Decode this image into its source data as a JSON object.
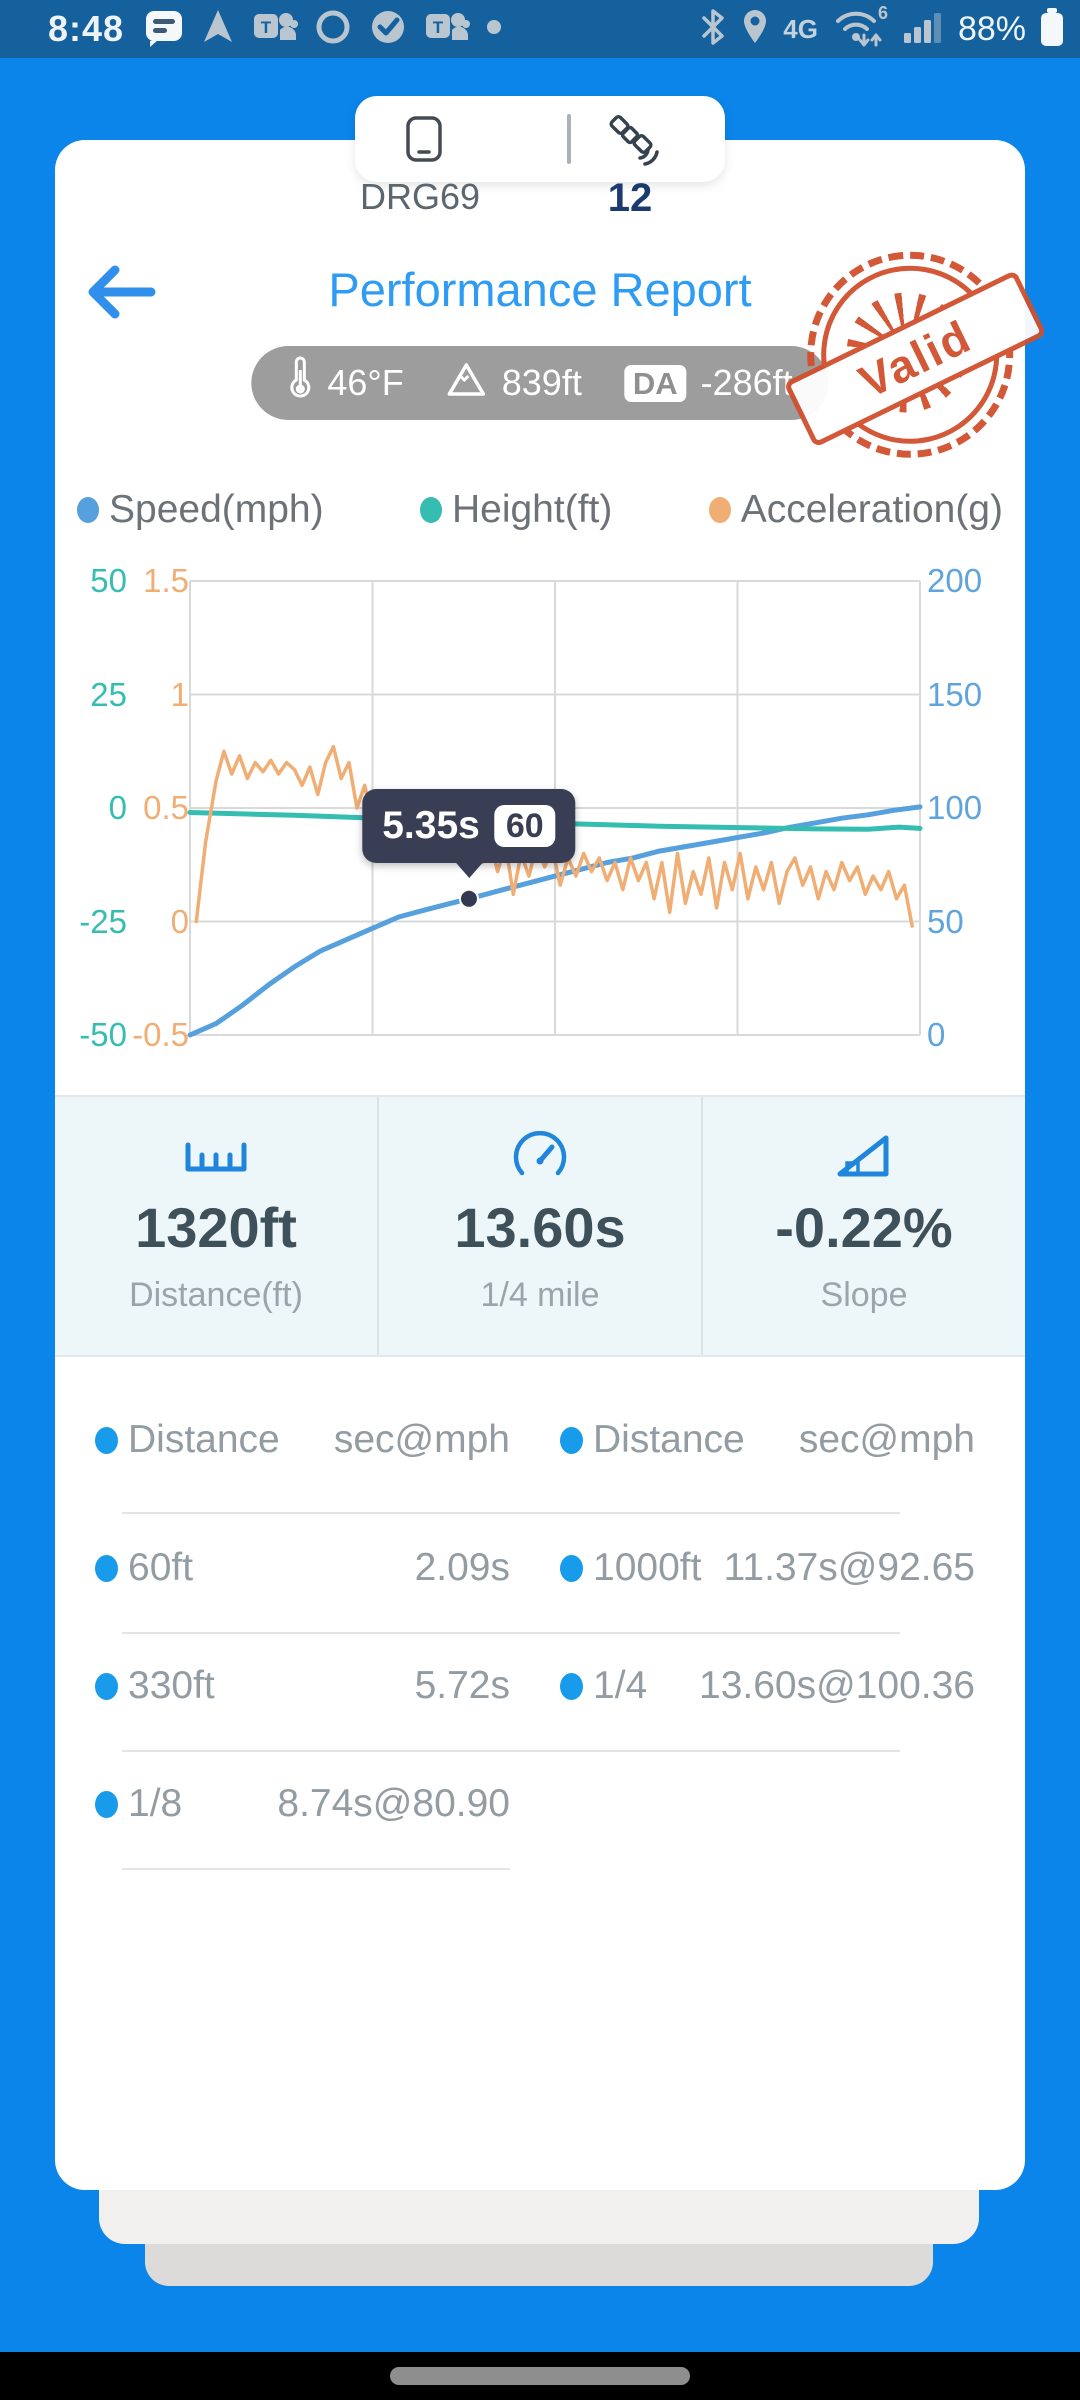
{
  "status_bar": {
    "time": "8:48",
    "battery": "88%",
    "mobile_data_label": "4G",
    "wifi_standard": "6",
    "left_icons": [
      "messages-icon",
      "navigation-arrow-icon",
      "teams-icon",
      "circle-icon",
      "check-circle-icon",
      "teams-icon",
      "overflow-dot-icon"
    ],
    "right_icons": [
      "bluetooth-icon",
      "location-pin-icon",
      "mobile-data-icon",
      "wifi-icon",
      "signal-bars-icon",
      "battery-icon"
    ]
  },
  "device_bar": {
    "device_name": "DRG69",
    "satellite_count": "12",
    "icons": [
      "device-icon",
      "satellite-icon"
    ]
  },
  "header": {
    "title": "Performance Report",
    "stamp_label": "Valid",
    "conditions": {
      "temperature": "46°F",
      "altitude": "839ft",
      "da_label": "DA",
      "density_altitude": "-286ft"
    }
  },
  "legend": [
    {
      "label": "Speed(mph)",
      "color": "#55A0DD"
    },
    {
      "label": "Height(ft)",
      "color": "#35BDB2"
    },
    {
      "label": "Acceleration(g)",
      "color": "#F0AE74"
    }
  ],
  "chart_data": {
    "type": "line",
    "x_range": [
      0,
      14
    ],
    "x_unit": "seconds",
    "grid": true,
    "axes": {
      "left_height": {
        "color": "#35BDB2",
        "range": [
          -50,
          50
        ],
        "ticks": [
          "50",
          "25",
          "0",
          "-25",
          "-50"
        ]
      },
      "left_acceleration": {
        "color": "#F0AE74",
        "range": [
          -0.5,
          1.5
        ],
        "ticks": [
          "1.5",
          "1",
          "0.5",
          "0",
          "-0.5"
        ]
      },
      "right_speed": {
        "color": "#61A4DB",
        "range": [
          0,
          200
        ],
        "ticks": [
          "200",
          "150",
          "100",
          "50",
          "0"
        ]
      }
    },
    "series": [
      {
        "name": "Speed(mph)",
        "axis": "right_speed",
        "color": "#55A0DD",
        "width": 5,
        "points": [
          [
            0,
            0
          ],
          [
            0.5,
            5
          ],
          [
            1,
            13
          ],
          [
            1.5,
            22
          ],
          [
            2,
            30
          ],
          [
            2.5,
            37
          ],
          [
            3,
            42
          ],
          [
            3.5,
            47
          ],
          [
            4,
            52
          ],
          [
            4.5,
            55
          ],
          [
            5,
            58
          ],
          [
            5.35,
            60
          ],
          [
            6,
            64
          ],
          [
            6.5,
            67
          ],
          [
            7,
            70
          ],
          [
            7.5,
            73
          ],
          [
            8,
            76
          ],
          [
            8.5,
            78
          ],
          [
            9,
            81
          ],
          [
            9.5,
            83
          ],
          [
            10,
            85
          ],
          [
            10.5,
            87
          ],
          [
            11,
            89
          ],
          [
            11.5,
            91.5
          ],
          [
            12,
            93.5
          ],
          [
            12.5,
            95.5
          ],
          [
            13,
            97
          ],
          [
            13.5,
            99
          ],
          [
            14,
            100.5
          ]
        ]
      },
      {
        "name": "Height(ft)",
        "axis": "left_height",
        "color": "#35BDB2",
        "width": 5,
        "points": [
          [
            0,
            -1
          ],
          [
            1,
            -1.3
          ],
          [
            2,
            -1.6
          ],
          [
            3,
            -2
          ],
          [
            4,
            -2.4
          ],
          [
            5,
            -2.8
          ],
          [
            6,
            -3.1
          ],
          [
            7,
            -3.4
          ],
          [
            8,
            -3.7
          ],
          [
            9,
            -4
          ],
          [
            10,
            -4.2
          ],
          [
            11,
            -4.4
          ],
          [
            12,
            -4.6
          ],
          [
            13,
            -4.7
          ],
          [
            13.6,
            -4.2
          ],
          [
            14,
            -4.5
          ]
        ]
      },
      {
        "name": "Acceleration(g)",
        "axis": "left_acceleration",
        "color": "#F0AE74",
        "width": 3.5,
        "points": [
          [
            0.12,
            0
          ],
          [
            0.3,
            0.35
          ],
          [
            0.5,
            0.62
          ],
          [
            0.65,
            0.75
          ],
          [
            0.8,
            0.65
          ],
          [
            0.95,
            0.73
          ],
          [
            1.1,
            0.63
          ],
          [
            1.25,
            0.7
          ],
          [
            1.4,
            0.66
          ],
          [
            1.55,
            0.71
          ],
          [
            1.7,
            0.65
          ],
          [
            1.85,
            0.7
          ],
          [
            2,
            0.67
          ],
          [
            2.15,
            0.6
          ],
          [
            2.3,
            0.68
          ],
          [
            2.45,
            0.56
          ],
          [
            2.6,
            0.7
          ],
          [
            2.75,
            0.77
          ],
          [
            2.9,
            0.63
          ],
          [
            3.05,
            0.7
          ],
          [
            3.2,
            0.5
          ],
          [
            3.35,
            0.6
          ],
          [
            3.5,
            0.44
          ],
          [
            3.65,
            0.54
          ],
          [
            3.8,
            0.38
          ],
          [
            3.95,
            0.3
          ],
          [
            4.1,
            0.42
          ],
          [
            4.25,
            0.33
          ],
          [
            4.4,
            0.44
          ],
          [
            4.55,
            0.3
          ],
          [
            4.7,
            0.4
          ],
          [
            4.85,
            0.46
          ],
          [
            5,
            0.36
          ],
          [
            5.15,
            0.44
          ],
          [
            5.3,
            0.3
          ],
          [
            5.45,
            0.38
          ],
          [
            5.6,
            0.26
          ],
          [
            5.75,
            0.36
          ],
          [
            5.9,
            0.22
          ],
          [
            6.05,
            0.34
          ],
          [
            6.2,
            0.12
          ],
          [
            6.35,
            0.3
          ],
          [
            6.5,
            0.2
          ],
          [
            6.65,
            0.34
          ],
          [
            6.8,
            0.24
          ],
          [
            6.95,
            0.32
          ],
          [
            7.1,
            0.16
          ],
          [
            7.25,
            0.28
          ],
          [
            7.4,
            0.2
          ],
          [
            7.55,
            0.3
          ],
          [
            7.7,
            0.22
          ],
          [
            7.85,
            0.28
          ],
          [
            8,
            0.18
          ],
          [
            8.15,
            0.26
          ],
          [
            8.3,
            0.14
          ],
          [
            8.45,
            0.28
          ],
          [
            8.6,
            0.18
          ],
          [
            8.75,
            0.26
          ],
          [
            8.9,
            0.1
          ],
          [
            9.05,
            0.26
          ],
          [
            9.2,
            0.04
          ],
          [
            9.35,
            0.3
          ],
          [
            9.5,
            0.08
          ],
          [
            9.65,
            0.22
          ],
          [
            9.8,
            0.12
          ],
          [
            9.95,
            0.28
          ],
          [
            10.1,
            0.06
          ],
          [
            10.25,
            0.26
          ],
          [
            10.4,
            0.14
          ],
          [
            10.55,
            0.3
          ],
          [
            10.7,
            0.1
          ],
          [
            10.85,
            0.24
          ],
          [
            11,
            0.14
          ],
          [
            11.15,
            0.26
          ],
          [
            11.3,
            0.08
          ],
          [
            11.45,
            0.22
          ],
          [
            11.6,
            0.28
          ],
          [
            11.75,
            0.16
          ],
          [
            11.9,
            0.24
          ],
          [
            12.05,
            0.1
          ],
          [
            12.2,
            0.22
          ],
          [
            12.35,
            0.14
          ],
          [
            12.5,
            0.26
          ],
          [
            12.65,
            0.18
          ],
          [
            12.8,
            0.24
          ],
          [
            12.95,
            0.12
          ],
          [
            13.1,
            0.2
          ],
          [
            13.25,
            0.14
          ],
          [
            13.4,
            0.22
          ],
          [
            13.55,
            0.1
          ],
          [
            13.7,
            0.16
          ],
          [
            13.85,
            -0.02
          ]
        ]
      }
    ],
    "tooltip": {
      "series": "Speed(mph)",
      "t": 5.35,
      "value": 60,
      "time_label": "5.35s",
      "value_label": "60"
    },
    "legend_position": "top"
  },
  "stats": [
    {
      "icon": "ruler-icon",
      "value": "1320ft",
      "label": "Distance(ft)"
    },
    {
      "icon": "speedometer-icon",
      "value": "13.60s",
      "label": "1/4 mile"
    },
    {
      "icon": "slope-icon",
      "value": "-0.22%",
      "label": "Slope"
    }
  ],
  "table": {
    "left": {
      "header": {
        "name": "Distance",
        "value": "sec@mph"
      },
      "rows": [
        {
          "name": "60ft",
          "value": "2.09s"
        },
        {
          "name": "330ft",
          "value": "5.72s"
        },
        {
          "name": "1/8",
          "value": "8.74s@80.90"
        }
      ]
    },
    "right": {
      "header": {
        "name": "Distance",
        "value": "sec@mph"
      },
      "rows": [
        {
          "name": "1000ft",
          "value": "11.37s@92.65"
        },
        {
          "name": "1/4",
          "value": "13.60s@100.36"
        }
      ]
    }
  },
  "colors": {
    "background": "#0B85EA",
    "status_bar": "#15619E",
    "title": "#2F9CF3",
    "stamp": "#D0502E",
    "chip": "#9D9D9D",
    "tooltip_bg": "#393E54",
    "stat_icon": "#1F86DC",
    "table_dot": "#189BEB",
    "stats_background": "#EDF7FA"
  }
}
